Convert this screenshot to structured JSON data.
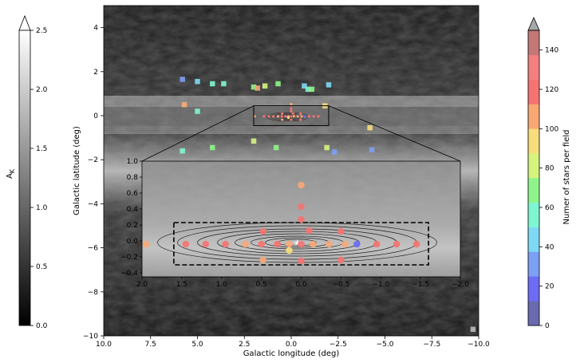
{
  "chart_data": {
    "type": "scatter",
    "main": {
      "xlabel": "Galactic longitude (deg)",
      "ylabel": "Galactic latitude (deg)",
      "xlim": [
        10.0,
        -10.0
      ],
      "ylim": [
        -10,
        5
      ],
      "xticks": [
        "10.0",
        "7.5",
        "5.0",
        "2.5",
        "0.0",
        "−2.5",
        "−5.0",
        "−7.5",
        "−10.0"
      ],
      "xtick_values": [
        10,
        7.5,
        5,
        2.5,
        0,
        -2.5,
        -5,
        -7.5,
        -10
      ],
      "yticks": [
        "4",
        "2",
        "0",
        "−2",
        "−4",
        "−6",
        "−8",
        "−10"
      ],
      "ytick_values": [
        4,
        2,
        0,
        -2,
        -4,
        -6,
        -8,
        -10
      ],
      "zoom_box": {
        "l": [
          2.0,
          -2.0
        ],
        "b": [
          -0.45,
          0.45
        ]
      },
      "fields": [
        {
          "l": 5.8,
          "b": 1.65,
          "n": 30
        },
        {
          "l": 5.0,
          "b": 1.55,
          "n": 40
        },
        {
          "l": 4.2,
          "b": 1.45,
          "n": 60
        },
        {
          "l": 3.6,
          "b": 1.45,
          "n": 60
        },
        {
          "l": 2.0,
          "b": 1.3,
          "n": 70
        },
        {
          "l": 1.8,
          "b": 1.25,
          "n": 110
        },
        {
          "l": 1.4,
          "b": 1.35,
          "n": 80
        },
        {
          "l": 0.7,
          "b": 1.45,
          "n": 70
        },
        {
          "l": -0.7,
          "b": 1.35,
          "n": 40
        },
        {
          "l": -0.9,
          "b": 1.2,
          "n": 60
        },
        {
          "l": -1.1,
          "b": 1.2,
          "n": 70
        },
        {
          "l": -2.0,
          "b": 1.4,
          "n": 40
        },
        {
          "l": 5.7,
          "b": 0.5,
          "n": 100
        },
        {
          "l": 5.0,
          "b": 0.2,
          "n": 50
        },
        {
          "l": -1.8,
          "b": 0.45,
          "n": 90
        },
        {
          "l": -4.2,
          "b": -0.55,
          "n": 90
        },
        {
          "l": 5.8,
          "b": -1.6,
          "n": 60
        },
        {
          "l": 4.2,
          "b": -1.45,
          "n": 70
        },
        {
          "l": 2.0,
          "b": -1.15,
          "n": 80
        },
        {
          "l": 0.8,
          "b": -1.45,
          "n": 70
        },
        {
          "l": -1.9,
          "b": -1.45,
          "n": 80
        },
        {
          "l": -2.3,
          "b": -1.65,
          "n": 30
        },
        {
          "l": -4.3,
          "b": -1.55,
          "n": 30
        },
        {
          "l": -9.7,
          "b": -9.7,
          "n": -1
        }
      ]
    },
    "inset": {
      "xlim": [
        2.0,
        -2.0
      ],
      "ylim": [
        -0.45,
        1.0
      ],
      "xticks": [
        "2.0",
        "1.5",
        "1.0",
        "0.5",
        "0.0",
        "−0.5",
        "−1.0",
        "−1.5",
        "−2.0"
      ],
      "xtick_values": [
        2,
        1.5,
        1,
        0.5,
        0,
        -0.5,
        -1,
        -1.5,
        -2
      ],
      "yticks": [
        "1.0",
        "0.8",
        "0.6",
        "0.4",
        "0.2",
        "0.0",
        "−0.2",
        "−0.4"
      ],
      "ytick_values": [
        1.0,
        0.8,
        0.6,
        0.4,
        0.2,
        0.0,
        -0.2,
        -0.4
      ],
      "dashed_box": {
        "l": [
          1.6,
          -1.6
        ],
        "b": [
          -0.3,
          0.23
        ]
      },
      "fields": [
        {
          "l": 1.95,
          "b": -0.04,
          "n": 100
        },
        {
          "l": 1.45,
          "b": -0.04,
          "n": 120
        },
        {
          "l": 1.2,
          "b": -0.04,
          "n": 120
        },
        {
          "l": 0.95,
          "b": -0.04,
          "n": 120
        },
        {
          "l": 0.7,
          "b": -0.04,
          "n": 110
        },
        {
          "l": 0.5,
          "b": -0.04,
          "n": 120
        },
        {
          "l": 0.3,
          "b": -0.04,
          "n": 120
        },
        {
          "l": 0.15,
          "b": -0.04,
          "n": 100
        },
        {
          "l": 0.0,
          "b": -0.04,
          "n": 120
        },
        {
          "l": -0.15,
          "b": -0.04,
          "n": 110
        },
        {
          "l": -0.35,
          "b": -0.04,
          "n": 100
        },
        {
          "l": -0.55,
          "b": -0.04,
          "n": 110
        },
        {
          "l": -0.7,
          "b": -0.04,
          "n": 20
        },
        {
          "l": -0.95,
          "b": -0.04,
          "n": 120
        },
        {
          "l": -1.2,
          "b": -0.04,
          "n": 120
        },
        {
          "l": -1.45,
          "b": -0.04,
          "n": 120
        },
        {
          "l": 0.48,
          "b": 0.12,
          "n": 120
        },
        {
          "l": 0.0,
          "b": 0.27,
          "n": 120
        },
        {
          "l": -0.1,
          "b": 0.13,
          "n": 120
        },
        {
          "l": -0.5,
          "b": 0.12,
          "n": 120
        },
        {
          "l": 0.0,
          "b": 0.43,
          "n": 120
        },
        {
          "l": 0.0,
          "b": 0.7,
          "n": 100
        },
        {
          "l": 0.48,
          "b": -0.24,
          "n": 100
        },
        {
          "l": 0.15,
          "b": -0.12,
          "n": 90
        },
        {
          "l": -0.5,
          "b": -0.24,
          "n": 120
        },
        {
          "l": 0.0,
          "b": -0.25,
          "n": 120
        }
      ]
    },
    "colorbar_ak": {
      "label": "A",
      "label_sub": "K",
      "range": [
        0.0,
        2.5
      ],
      "ticks": [
        "0.0",
        "0.5",
        "1.0",
        "1.5",
        "2.0",
        "2.5"
      ],
      "tick_values": [
        0,
        0.5,
        1.0,
        1.5,
        2.0,
        2.5
      ],
      "cmap": "gray"
    },
    "colorbar_stars": {
      "label": "Numer of stars per field",
      "range": [
        0,
        150
      ],
      "ticks": [
        "0",
        "20",
        "40",
        "60",
        "80",
        "100",
        "120",
        "140"
      ],
      "tick_values": [
        0,
        20,
        40,
        60,
        80,
        100,
        120,
        140
      ],
      "colors": [
        "#6a6aae",
        "#6c6cf5",
        "#7d9ff4",
        "#7fd8f4",
        "#7ff6d2",
        "#8ff58a",
        "#d5f47e",
        "#f7dd7c",
        "#f8a875",
        "#f47472",
        "#f47f7f",
        "#c37777"
      ],
      "extend": "max"
    }
  }
}
